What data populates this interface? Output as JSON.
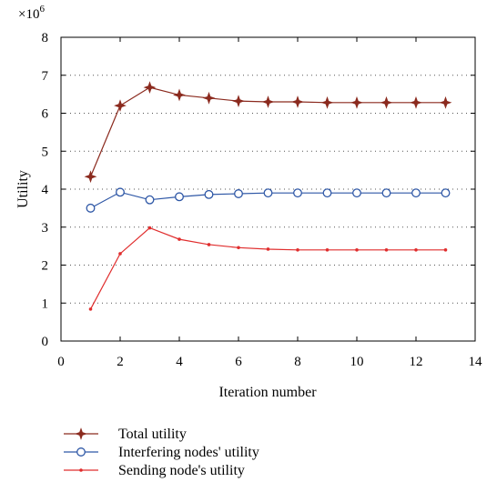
{
  "chart_data": {
    "type": "line",
    "xlabel": "Iteration number",
    "ylabel": "Utility",
    "y_multiplier_label": "×10",
    "y_multiplier_exponent": "6",
    "xlim": [
      0,
      14
    ],
    "ylim": [
      0,
      8
    ],
    "xticks": [
      0,
      2,
      4,
      6,
      8,
      10,
      12,
      14
    ],
    "yticks": [
      0,
      1,
      2,
      3,
      4,
      5,
      6,
      7,
      8
    ],
    "grid": "dotted-horizontal",
    "legend_position": "bottom",
    "x": [
      1,
      2,
      3,
      4,
      5,
      6,
      7,
      8,
      9,
      10,
      11,
      12,
      13
    ],
    "series": [
      {
        "name": "Total utility",
        "color": "#8b2a1e",
        "marker": "star",
        "values": [
          4.33,
          6.2,
          6.68,
          6.48,
          6.4,
          6.32,
          6.3,
          6.3,
          6.28,
          6.28,
          6.28,
          6.28,
          6.28
        ]
      },
      {
        "name": "Interfering nodes' utility",
        "color": "#2e57a6",
        "marker": "circle",
        "values": [
          3.5,
          3.92,
          3.72,
          3.8,
          3.86,
          3.88,
          3.9,
          3.9,
          3.9,
          3.9,
          3.9,
          3.9,
          3.9
        ]
      },
      {
        "name": "Sending node's utility",
        "color": "#e02d2d",
        "marker": "dot",
        "values": [
          0.84,
          2.3,
          2.98,
          2.68,
          2.54,
          2.46,
          2.42,
          2.4,
          2.4,
          2.4,
          2.4,
          2.4,
          2.4
        ]
      }
    ]
  }
}
